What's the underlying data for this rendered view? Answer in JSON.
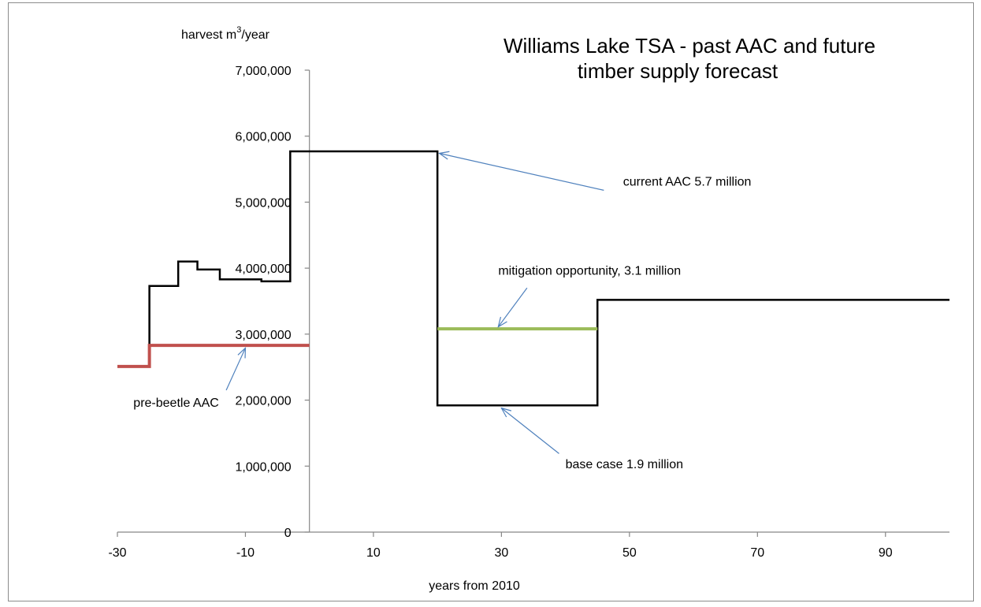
{
  "chart_data": {
    "type": "line",
    "title": "Williams Lake TSA - past AAC and future timber supply forecast",
    "title_lines": [
      "Williams Lake TSA - past AAC and future",
      "timber supply forecast"
    ],
    "ylabel": {
      "text": "harvest m",
      "sup": "3",
      "suffix": "/year"
    },
    "xlabel": "years from 2010",
    "xlim": [
      -30,
      100
    ],
    "ylim": [
      0,
      7000000
    ],
    "x_ticks": [
      -30,
      -10,
      10,
      30,
      50,
      70,
      90
    ],
    "x_tick_labels": [
      "-30",
      "-10",
      "10",
      "30",
      "50",
      "70",
      "90"
    ],
    "y_ticks": [
      0,
      1000000,
      2000000,
      3000000,
      4000000,
      5000000,
      6000000,
      7000000
    ],
    "y_tick_labels": [
      "0",
      "1,000,000",
      "2,000,000",
      "3,000,000",
      "4,000,000",
      "5,000,000",
      "6,000,000",
      "7,000,000"
    ],
    "grid": false,
    "legend": "none",
    "series": [
      {
        "color": "#000000",
        "step": true,
        "points": [
          [
            -25,
            2830000
          ],
          [
            -25,
            3730000
          ],
          [
            -20.5,
            3730000
          ],
          [
            -20.5,
            4100000
          ],
          [
            -17.5,
            4100000
          ],
          [
            -17.5,
            3980000
          ],
          [
            -14,
            3980000
          ],
          [
            -14,
            3830000
          ],
          [
            -7.5,
            3830000
          ],
          [
            -7.5,
            3800000
          ],
          [
            -3,
            3800000
          ],
          [
            -3,
            5770000
          ],
          [
            20,
            5770000
          ],
          [
            20,
            1920000
          ],
          [
            45,
            1920000
          ],
          [
            45,
            3520000
          ],
          [
            100,
            3520000
          ]
        ]
      },
      {
        "color": "#c0504d",
        "step": true,
        "points": [
          [
            -30,
            2510000
          ],
          [
            -25,
            2510000
          ],
          [
            -25,
            2830000
          ],
          [
            0,
            2830000
          ]
        ]
      },
      {
        "color": "#9bbb59",
        "step": false,
        "points": [
          [
            20,
            3080000
          ],
          [
            45,
            3080000
          ]
        ]
      }
    ],
    "annotations": [
      {
        "text": "current AAC 5.7 million",
        "text_at": [
          49,
          5250000
        ],
        "arrow_from": [
          46,
          5180000
        ],
        "arrow_to": [
          20.3,
          5740000
        ]
      },
      {
        "text": "mitigation opportunity, 3.1 million",
        "text_at": [
          29.5,
          3900000
        ],
        "arrow_from": [
          34,
          3700000
        ],
        "arrow_to": [
          29.5,
          3110000
        ]
      },
      {
        "text": "pre-beetle AAC",
        "text_at": [
          -27.5,
          1900000
        ],
        "arrow_from": [
          -13,
          2150000
        ],
        "arrow_to": [
          -10,
          2790000
        ]
      },
      {
        "text": "base case 1.9 million",
        "text_at": [
          40,
          970000
        ],
        "arrow_from": [
          39,
          1190000
        ],
        "arrow_to": [
          30,
          1880000
        ]
      }
    ],
    "colors": {
      "axis": "#868686",
      "arrow": "#4f81bd"
    }
  }
}
